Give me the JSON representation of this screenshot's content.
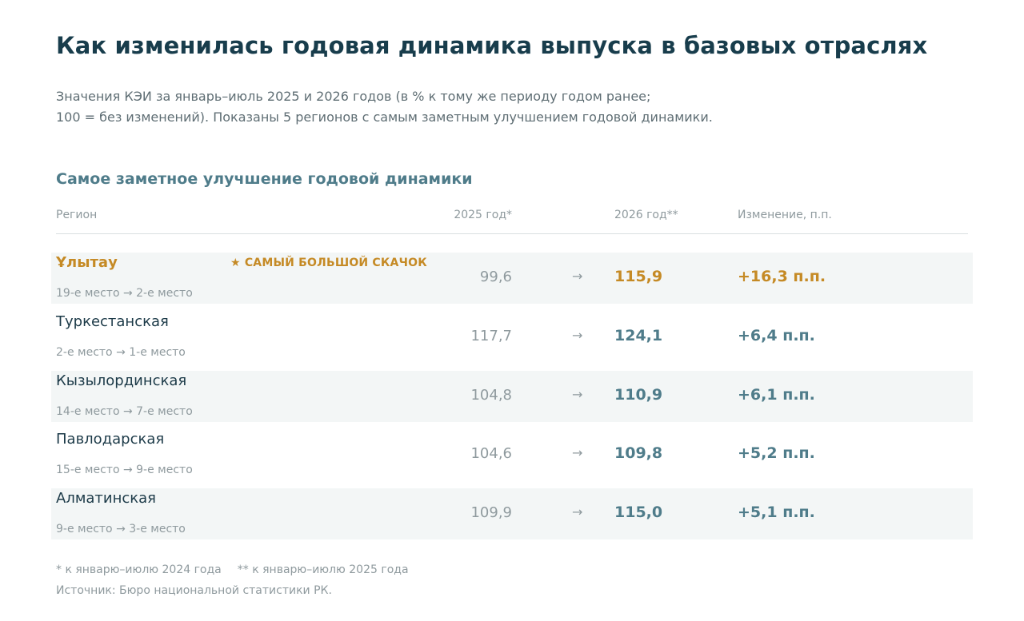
{
  "title": "Как изменилась годовая динамика выпуска в базовых отраслях",
  "subtitle": {
    "line1": "Значения КЭИ за январь–июль 2025 и 2026 годов (в % к тому же периоду годом ранее;",
    "line2": "100 = без изменений). Показаны 5 регионов с самым заметным улучшением годовой динамики."
  },
  "section_title": "Самое заметное улучшение годовой динамики",
  "columns": {
    "region": "Регион",
    "y2025": "2025 год*",
    "y2026": "2026 год**",
    "change": "Изменение, п.п."
  },
  "arrow_glyph": "→",
  "badge": "★ САМЫЙ БОЛЬШОЙ СКАЧОК",
  "rows": [
    {
      "region": "Ұлытау",
      "rank": "19-е место → 2-е место",
      "v2025": "99,6",
      "v2026": "115,9",
      "change": "+16,3 п.п."
    },
    {
      "region": "Туркестанская",
      "rank": "2-е место → 1-е место",
      "v2025": "117,7",
      "v2026": "124,1",
      "change": "+6,4 п.п."
    },
    {
      "region": "Кызылординская",
      "rank": "14-е место → 7-е место",
      "v2025": "104,8",
      "v2026": "110,9",
      "change": "+6,1 п.п."
    },
    {
      "region": "Павлодарская",
      "rank": "15-е место → 9-е место",
      "v2025": "104,6",
      "v2026": "109,8",
      "change": "+5,2 п.п."
    },
    {
      "region": "Алматинская",
      "rank": "9-е место → 3-е место",
      "v2025": "109,9",
      "v2026": "115,0",
      "change": "+5,1 п.п."
    }
  ],
  "footnotes": {
    "note1": "* к январю–июлю 2024 года",
    "note2": "** к январю–июлю 2025 года",
    "source": "Источник: Бюро национальной статистики РК."
  },
  "colors": {
    "title": "#183d4c",
    "accent": "#4f7c8a",
    "highlight": "#c58a25",
    "muted": "#8f9a9e",
    "row_shade": "#f3f6f6"
  }
}
